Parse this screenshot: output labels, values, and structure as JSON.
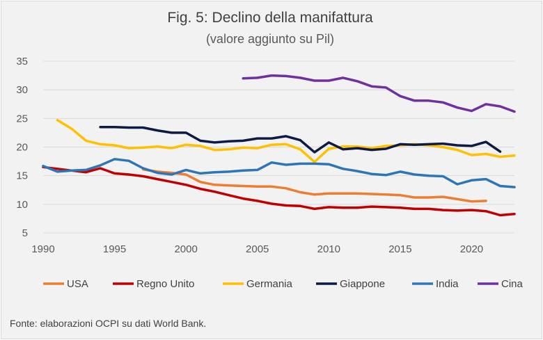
{
  "chart_data": {
    "type": "line",
    "title": "Fig. 5: Declino della manifattura",
    "subtitle": "(valore aggiunto su Pil)",
    "source": "Fonte: elaborazioni OCPI su dati World Bank.",
    "xlabel": "",
    "ylabel": "",
    "xlim": [
      1990,
      2023
    ],
    "ylim": [
      5,
      35
    ],
    "x_ticks": [
      1990,
      1995,
      2000,
      2005,
      2010,
      2015,
      2020
    ],
    "y_ticks": [
      5,
      10,
      15,
      20,
      25,
      30,
      35
    ],
    "grid": "horizontal",
    "legend_position": "bottom",
    "series": [
      {
        "name": "USA",
        "color": "#ed7d31",
        "x": [
          1997,
          1998,
          1999,
          2000,
          2001,
          2002,
          2003,
          2004,
          2005,
          2006,
          2007,
          2008,
          2009,
          2010,
          2011,
          2012,
          2013,
          2014,
          2015,
          2016,
          2017,
          2018,
          2019,
          2020,
          2021
        ],
        "values": [
          16.1,
          15.7,
          15.5,
          15.2,
          13.9,
          13.4,
          13.3,
          13.2,
          13.1,
          13.1,
          12.8,
          12.1,
          11.7,
          11.9,
          11.9,
          11.9,
          11.8,
          11.7,
          11.6,
          11.2,
          11.2,
          11.3,
          10.9,
          10.5,
          10.6
        ]
      },
      {
        "name": "Regno Unito",
        "color": "#c00000",
        "x": [
          1990,
          1991,
          1992,
          1993,
          1994,
          1995,
          1996,
          1997,
          1998,
          1999,
          2000,
          2001,
          2002,
          2003,
          2004,
          2005,
          2006,
          2007,
          2008,
          2009,
          2010,
          2011,
          2012,
          2013,
          2014,
          2015,
          2016,
          2017,
          2018,
          2019,
          2020,
          2021,
          2022,
          2023
        ],
        "values": [
          16.5,
          16.2,
          15.9,
          15.6,
          16.3,
          15.4,
          15.2,
          14.9,
          14.4,
          13.9,
          13.4,
          12.7,
          12.2,
          11.6,
          11.0,
          10.6,
          10.1,
          9.8,
          9.7,
          9.2,
          9.5,
          9.4,
          9.4,
          9.6,
          9.5,
          9.4,
          9.2,
          9.2,
          9.0,
          8.9,
          9.0,
          8.8,
          8.1,
          8.3
        ]
      },
      {
        "name": "Germania",
        "color": "#ffc000",
        "x": [
          1991,
          1992,
          1993,
          1994,
          1995,
          1996,
          1997,
          1998,
          1999,
          2000,
          2001,
          2002,
          2003,
          2004,
          2005,
          2006,
          2007,
          2008,
          2009,
          2010,
          2011,
          2012,
          2013,
          2014,
          2015,
          2016,
          2017,
          2018,
          2019,
          2020,
          2021,
          2022,
          2023
        ],
        "values": [
          24.7,
          23.2,
          21.1,
          20.5,
          20.3,
          19.8,
          19.9,
          20.1,
          19.8,
          20.4,
          20.2,
          19.5,
          19.6,
          19.9,
          19.8,
          20.4,
          20.5,
          19.6,
          17.4,
          19.7,
          20.1,
          20.1,
          19.8,
          20.2,
          20.3,
          20.5,
          20.3,
          20.0,
          19.5,
          18.6,
          18.8,
          18.3,
          18.5
        ]
      },
      {
        "name": "Giappone",
        "color": "#0d1a45",
        "x": [
          1994,
          1995,
          1996,
          1997,
          1998,
          1999,
          2000,
          2001,
          2002,
          2003,
          2004,
          2005,
          2006,
          2007,
          2008,
          2009,
          2010,
          2011,
          2012,
          2013,
          2014,
          2015,
          2016,
          2017,
          2018,
          2019,
          2020,
          2021,
          2022
        ],
        "values": [
          23.5,
          23.5,
          23.4,
          23.4,
          22.9,
          22.5,
          22.5,
          21.1,
          20.8,
          21.0,
          21.1,
          21.5,
          21.5,
          21.9,
          21.2,
          19.1,
          20.8,
          19.6,
          19.8,
          19.5,
          19.7,
          20.5,
          20.4,
          20.5,
          20.6,
          20.3,
          20.2,
          20.9,
          19.2
        ]
      },
      {
        "name": "India",
        "color": "#2e75b6",
        "x": [
          1990,
          1991,
          1992,
          1993,
          1994,
          1995,
          1996,
          1997,
          1998,
          1999,
          2000,
          2001,
          2002,
          2003,
          2004,
          2005,
          2006,
          2007,
          2008,
          2009,
          2010,
          2011,
          2012,
          2013,
          2014,
          2015,
          2016,
          2017,
          2018,
          2019,
          2020,
          2021,
          2022,
          2023
        ],
        "values": [
          16.7,
          15.7,
          15.9,
          16.0,
          16.8,
          17.9,
          17.6,
          16.3,
          15.5,
          15.2,
          16.0,
          15.4,
          15.6,
          15.7,
          15.9,
          16.0,
          17.3,
          16.9,
          17.1,
          17.1,
          17.0,
          16.2,
          15.8,
          15.3,
          15.1,
          15.7,
          15.2,
          15.0,
          14.9,
          13.5,
          14.2,
          14.4,
          13.2,
          13.0
        ]
      },
      {
        "name": "Cina",
        "color": "#7030a0",
        "x": [
          2004,
          2005,
          2006,
          2007,
          2008,
          2009,
          2010,
          2011,
          2012,
          2013,
          2014,
          2015,
          2016,
          2017,
          2018,
          2019,
          2020,
          2021,
          2022,
          2023
        ],
        "values": [
          32.0,
          32.1,
          32.5,
          32.4,
          32.1,
          31.6,
          31.6,
          32.1,
          31.5,
          30.6,
          30.4,
          28.9,
          28.1,
          28.1,
          27.8,
          26.9,
          26.3,
          27.5,
          27.1,
          26.2
        ]
      }
    ]
  }
}
